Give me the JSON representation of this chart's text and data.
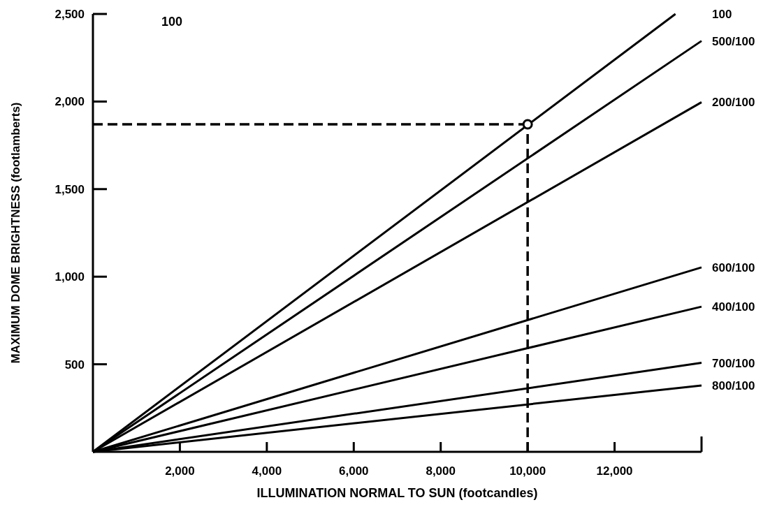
{
  "chart_data": {
    "type": "line",
    "xlabel": "ILLUMINATION NORMAL TO SUN (footcandles)",
    "ylabel": "MAXIMUM DOME BRIGHTNESS (footlamberts)",
    "xlim": [
      0,
      14000
    ],
    "ylim": [
      0,
      2500
    ],
    "xticks": [
      {
        "value": 2000,
        "label": "2,000"
      },
      {
        "value": 4000,
        "label": "4,000"
      },
      {
        "value": 6000,
        "label": "6,000"
      },
      {
        "value": 8000,
        "label": "8,000"
      },
      {
        "value": 10000,
        "label": "10,000"
      },
      {
        "value": 12000,
        "label": "12,000"
      }
    ],
    "yticks": [
      500,
      {
        "value": 1000,
        "label": "1,000"
      },
      {
        "value": 1500,
        "label": "1,500"
      },
      {
        "value": 2000,
        "label": "2,000"
      },
      {
        "value": 2500,
        "label": "2,500"
      }
    ],
    "grid": false,
    "line_style": "solid",
    "series": [
      {
        "name": "100",
        "color": "#000000",
        "x": [
          0,
          13400
        ],
        "values": [
          0,
          2500
        ]
      },
      {
        "name": "500/100",
        "color": "#000000",
        "x": [
          0,
          14000
        ],
        "values": [
          0,
          2346
        ]
      },
      {
        "name": "200/100",
        "color": "#000000",
        "x": [
          0,
          14000
        ],
        "values": [
          0,
          1996
        ]
      },
      {
        "name": "600/100",
        "color": "#000000",
        "x": [
          0,
          14000
        ],
        "values": [
          0,
          1053
        ]
      },
      {
        "name": "400/100",
        "color": "#000000",
        "x": [
          0,
          14000
        ],
        "values": [
          0,
          829
        ]
      },
      {
        "name": "700/100",
        "color": "#000000",
        "x": [
          0,
          14000
        ],
        "values": [
          0,
          508
        ]
      },
      {
        "name": "800/100",
        "color": "#000000",
        "x": [
          0,
          14000
        ],
        "values": [
          0,
          379
        ]
      },
      {
        "type": "scatter",
        "marker": "circle",
        "color": "#000000",
        "x": [
          10000
        ],
        "values": [
          1870
        ]
      }
    ],
    "ref_lines": [
      {
        "axis": "x",
        "value": 10000,
        "line_style": "dashed",
        "color": "#000000"
      },
      {
        "axis": "y",
        "value": 1870,
        "line_style": "dashed",
        "color": "#000000"
      }
    ],
    "annotations": [
      "100"
    ]
  }
}
